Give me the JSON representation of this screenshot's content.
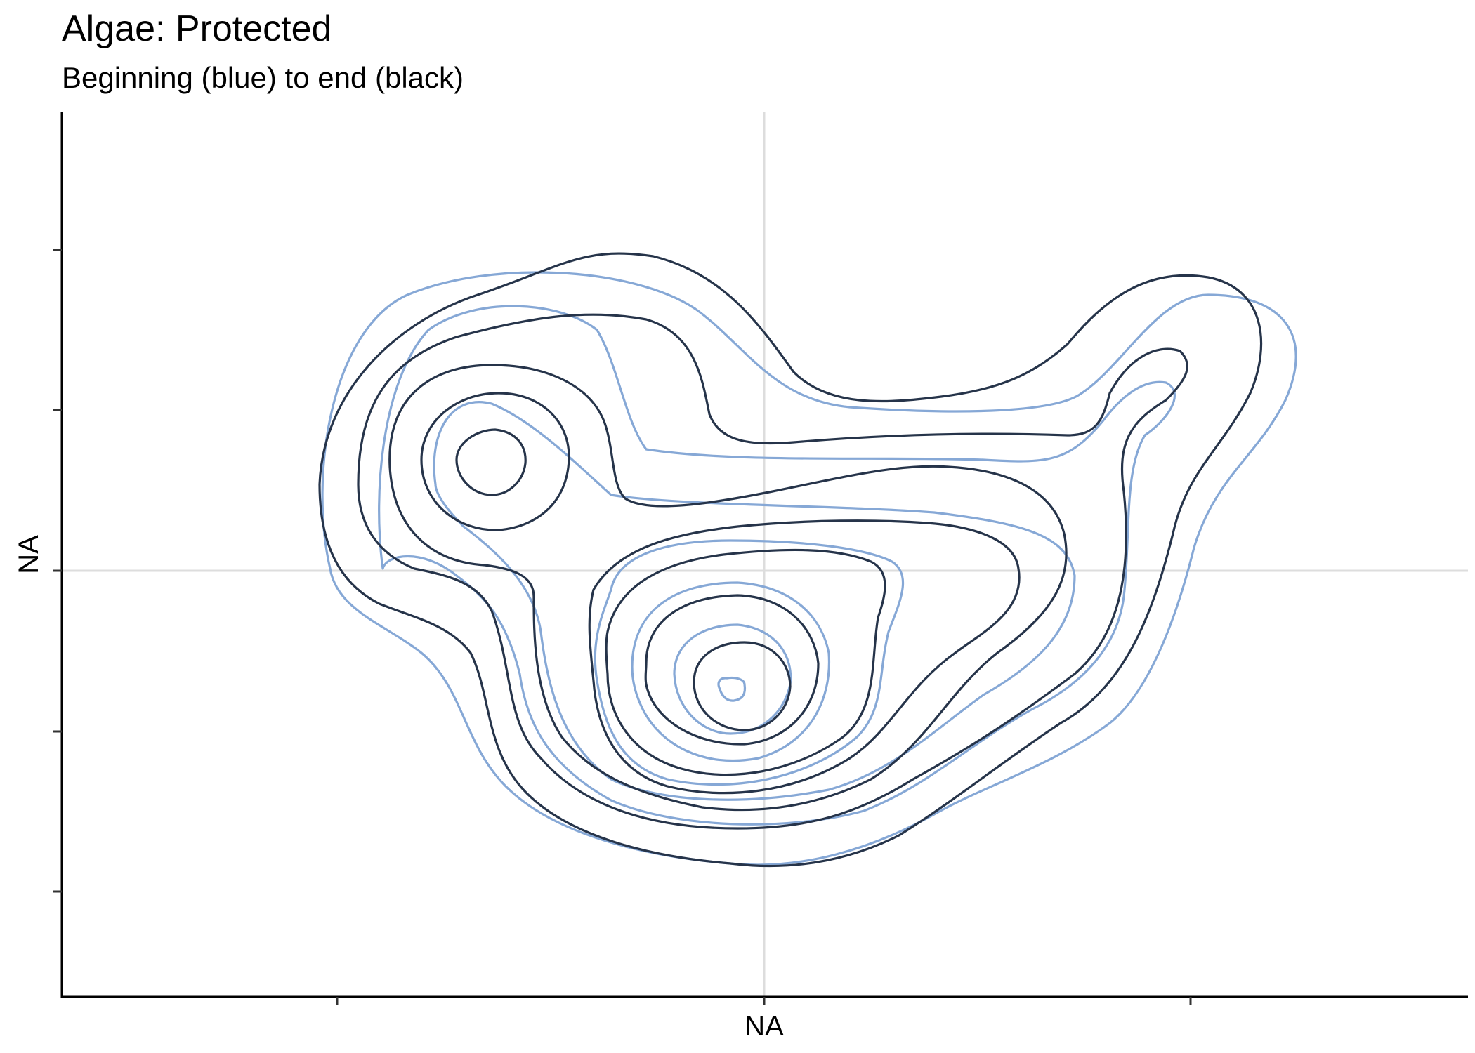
{
  "chart_data": {
    "type": "contour",
    "title": "Algae: Protected",
    "subtitle": "Beginning (blue) to end (black)",
    "xlabel": "NA",
    "ylabel": "NA",
    "x_ticks": [
      "",
      "",
      ""
    ],
    "y_ticks": [
      "",
      "",
      "",
      "",
      ""
    ],
    "grid": "zero lines only (x = center, y = center)",
    "legend": "none",
    "series": [
      {
        "color": "#86A8D6",
        "contour_levels": 7
      },
      {
        "color": "#26344A",
        "contour_levels": 8
      }
    ]
  }
}
